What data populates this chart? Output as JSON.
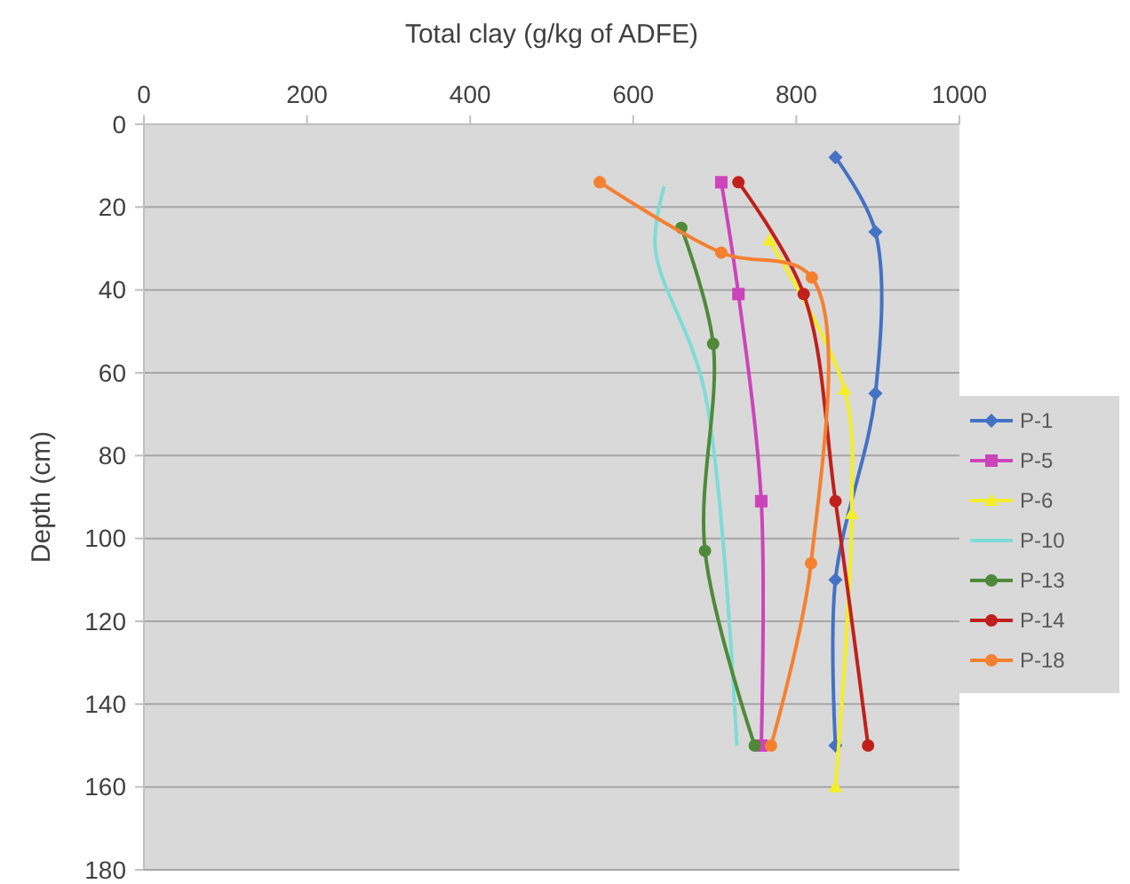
{
  "chart_data": {
    "type": "line",
    "xlabel": "Total clay (g/kg of ADFE)",
    "ylabel": "Depth (cm)",
    "xlim": [
      0,
      1000
    ],
    "xticks": [
      0,
      200,
      400,
      600,
      800,
      1000
    ],
    "ylim": [
      180,
      0
    ],
    "yticks": [
      0,
      20,
      40,
      60,
      80,
      100,
      120,
      140,
      160,
      180
    ],
    "grid": "y",
    "legend": "right",
    "series": [
      {
        "name": "P-1",
        "color": "#4472c4",
        "marker": "diamond",
        "x": [
          848,
          897,
          897,
          848,
          848
        ],
        "values": [
          8,
          26,
          65,
          110,
          150
        ]
      },
      {
        "name": "P-5",
        "color": "#cc44bb",
        "marker": "square",
        "x": [
          708,
          729,
          757,
          757
        ],
        "values": [
          14,
          41,
          91,
          150
        ]
      },
      {
        "name": "P-6",
        "color": "#f2ee2a",
        "marker": "triangle",
        "x": [
          767,
          859,
          868,
          848
        ],
        "values": [
          28,
          64,
          94,
          160
        ]
      },
      {
        "name": "P-10",
        "color": "#7fdcd6",
        "marker": "none",
        "x": [
          638,
          627,
          687,
          727
        ],
        "values": [
          15,
          30,
          64,
          150
        ]
      },
      {
        "name": "P-13",
        "color": "#4e8a3a",
        "marker": "circle",
        "x": [
          659,
          698,
          688,
          749
        ],
        "values": [
          25,
          53,
          103,
          150
        ]
      },
      {
        "name": "P-14",
        "color": "#c0201c",
        "marker": "circle",
        "x": [
          729,
          809,
          848,
          888
        ],
        "values": [
          14,
          41,
          91,
          150
        ]
      },
      {
        "name": "P-18",
        "color": "#f58030",
        "marker": "circle",
        "x": [
          559,
          708,
          819,
          818,
          769
        ],
        "values": [
          14,
          31,
          37,
          106,
          150
        ]
      }
    ]
  }
}
